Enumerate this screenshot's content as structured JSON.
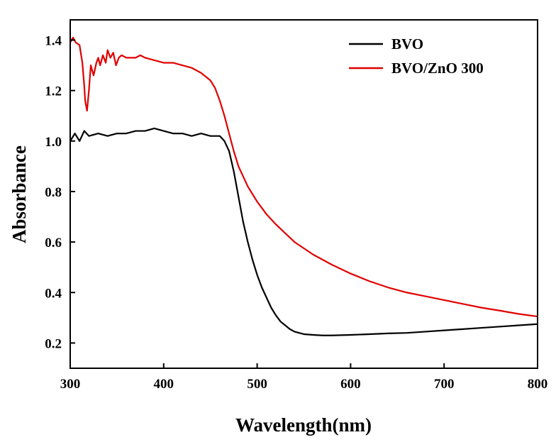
{
  "chart_data": {
    "type": "line",
    "title": "",
    "xlabel": "Wavelength(nm)",
    "ylabel": "Absorbance",
    "xlim": [
      300,
      800
    ],
    "ylim": [
      0.1,
      1.48
    ],
    "xticks": [
      300,
      400,
      500,
      600,
      700,
      800
    ],
    "xtick_labels": [
      "300",
      "400",
      "500",
      "600",
      "700",
      "800"
    ],
    "yticks": [
      0.2,
      0.4,
      0.6,
      0.8,
      1.0,
      1.2,
      1.4
    ],
    "ytick_labels": [
      "0.2",
      "0.4",
      "0.6",
      "0.8",
      "1.0",
      "1.2",
      "1.4"
    ],
    "grid": false,
    "legend_position": "top-right",
    "series": [
      {
        "name": "BVO",
        "color": "#000000",
        "x": [
          300,
          305,
          310,
          315,
          320,
          330,
          340,
          350,
          360,
          370,
          380,
          390,
          400,
          410,
          420,
          430,
          440,
          450,
          455,
          460,
          465,
          470,
          475,
          480,
          485,
          490,
          495,
          500,
          505,
          510,
          515,
          520,
          525,
          530,
          535,
          540,
          545,
          550,
          560,
          570,
          580,
          600,
          620,
          640,
          660,
          680,
          700,
          720,
          740,
          760,
          780,
          800
        ],
        "y": [
          1.0,
          1.03,
          1.0,
          1.04,
          1.02,
          1.03,
          1.02,
          1.03,
          1.03,
          1.04,
          1.04,
          1.05,
          1.04,
          1.03,
          1.03,
          1.02,
          1.03,
          1.02,
          1.02,
          1.02,
          1.0,
          0.96,
          0.88,
          0.78,
          0.68,
          0.6,
          0.53,
          0.47,
          0.42,
          0.38,
          0.34,
          0.31,
          0.285,
          0.27,
          0.255,
          0.245,
          0.24,
          0.235,
          0.232,
          0.23,
          0.23,
          0.232,
          0.235,
          0.238,
          0.24,
          0.245,
          0.25,
          0.255,
          0.26,
          0.265,
          0.27,
          0.275
        ]
      },
      {
        "name": "BVO/ZnO 300",
        "color": "#e00000",
        "x": [
          300,
          303,
          306,
          310,
          313,
          315,
          316,
          318,
          320,
          322,
          325,
          328,
          330,
          332,
          335,
          338,
          340,
          343,
          346,
          349,
          352,
          355,
          360,
          365,
          370,
          375,
          380,
          390,
          400,
          410,
          420,
          430,
          440,
          450,
          455,
          460,
          465,
          470,
          475,
          480,
          485,
          490,
          495,
          500,
          510,
          520,
          530,
          540,
          550,
          560,
          580,
          600,
          620,
          640,
          660,
          680,
          700,
          720,
          740,
          760,
          780,
          800
        ],
        "y": [
          1.39,
          1.41,
          1.39,
          1.38,
          1.31,
          1.22,
          1.16,
          1.12,
          1.2,
          1.3,
          1.26,
          1.31,
          1.33,
          1.3,
          1.34,
          1.31,
          1.36,
          1.33,
          1.35,
          1.3,
          1.33,
          1.34,
          1.33,
          1.33,
          1.33,
          1.34,
          1.33,
          1.32,
          1.31,
          1.31,
          1.3,
          1.29,
          1.27,
          1.24,
          1.21,
          1.16,
          1.1,
          1.03,
          0.96,
          0.9,
          0.86,
          0.82,
          0.79,
          0.76,
          0.71,
          0.67,
          0.635,
          0.6,
          0.575,
          0.55,
          0.51,
          0.475,
          0.445,
          0.42,
          0.4,
          0.385,
          0.37,
          0.355,
          0.34,
          0.328,
          0.315,
          0.305
        ]
      }
    ]
  }
}
